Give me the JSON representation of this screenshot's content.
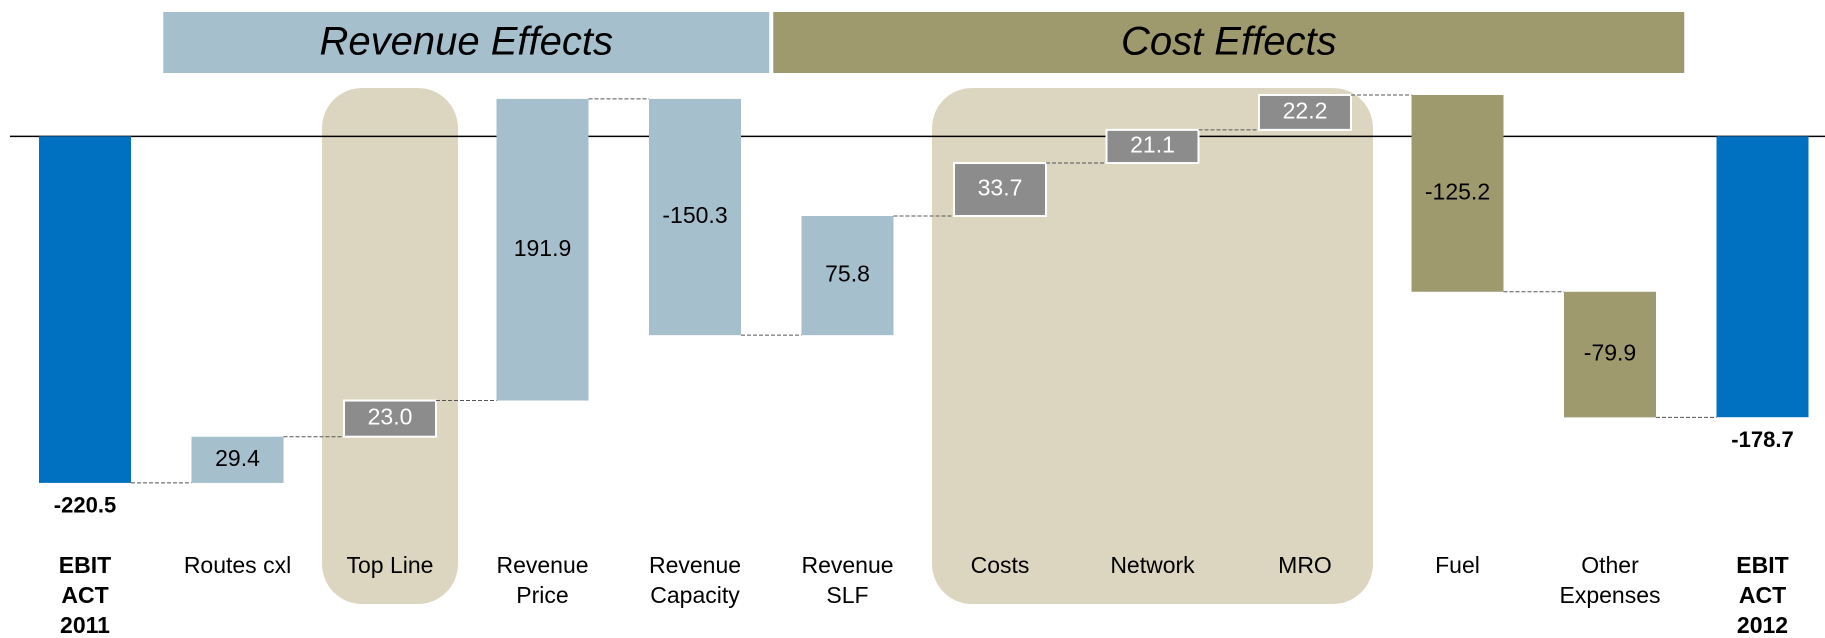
{
  "chart_data": {
    "type": "waterfall",
    "categories": [
      "EBIT ACT 2011",
      "Routes cxl",
      "Top Line",
      "Revenue Price",
      "Revenue Capacity",
      "Revenue SLF",
      "Costs",
      "Network",
      "MRO",
      "Fuel",
      "Other Expenses",
      "EBIT ACT 2012"
    ],
    "values": [
      -220.5,
      29.4,
      23.0,
      191.9,
      -150.3,
      75.8,
      33.7,
      21.1,
      22.2,
      -125.2,
      -79.9,
      -178.7
    ],
    "value_labels": [
      "-220.5",
      "29.4",
      "23.0",
      "191.9",
      "-150.3",
      "75.8",
      "33.7",
      "21.1",
      "22.2",
      "-125.2",
      "-79.9",
      "-178.7"
    ],
    "measure": [
      "absolute",
      "relative",
      "relative",
      "relative",
      "relative",
      "relative",
      "relative",
      "relative",
      "relative",
      "relative",
      "relative",
      "absolute"
    ],
    "colors": [
      "#0070c0",
      "#a5bfcc",
      "#8c8c8c",
      "#a5bfcc",
      "#a5bfcc",
      "#a5bfcc",
      "#8c8c8c",
      "#8c8c8c",
      "#8c8c8c",
      "#9e9a6e",
      "#9e9a6e",
      "#0070c0"
    ],
    "label_colors": [
      "#000000",
      "#000000",
      "#ffffff",
      "#000000",
      "#000000",
      "#000000",
      "#ffffff",
      "#ffffff",
      "#ffffff",
      "#000000",
      "#000000",
      "#000000"
    ],
    "ylim": [
      -260,
      60
    ],
    "zero_line": true,
    "groups": [
      {
        "label": "Revenue Effects",
        "from": 1,
        "to": 4,
        "color": "#a5bfcc"
      },
      {
        "label": "Cost Effects",
        "from": 5,
        "to": 10,
        "color": "#9e9a6e"
      }
    ],
    "highlights": [
      {
        "from": 2,
        "to": 2
      },
      {
        "from": 6,
        "to": 8
      }
    ],
    "highlight_color": "#dcd6c0"
  }
}
